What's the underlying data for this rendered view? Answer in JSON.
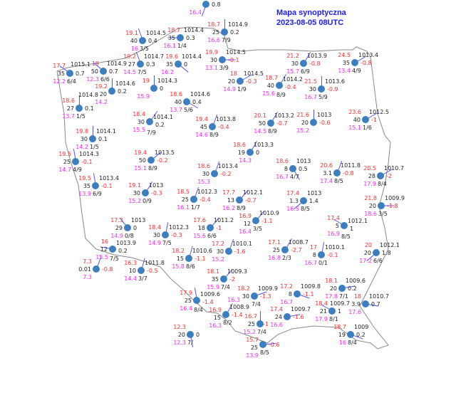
{
  "title": {
    "line1": "Mapa synoptyczna",
    "line2": "2023-08-05 08UTC"
  },
  "colors": {
    "title": "#1a1aff",
    "temperature": "#ff2a2a",
    "dew_point": "#ff22ff",
    "station": "#3d7ec0",
    "wind": "#5555ff",
    "border": "#888888"
  },
  "stations": [
    {
      "dew": "16.4",
      "tend": "0.8"
    },
    {
      "temp": "19.1",
      "pres": "1014.5",
      "vis": "40",
      "tend": "0.4",
      "dew": "16",
      "cl": "3/5"
    },
    {
      "temp": "18.7",
      "pres": "1014.4",
      "vis": "35",
      "tend": "0.3",
      "dew": "16.1",
      "cl": "1/4"
    },
    {
      "temp": "19.2",
      "pres": "1014.7",
      "vis": "27",
      "tend": "0.3",
      "dew": "14.5",
      "cl": "7/5"
    },
    {
      "temp": "19.6",
      "pres": "1014.4",
      "vis": "35",
      "tend": "0",
      "dew": "16.2"
    },
    {
      "temp": "19",
      "pres": "1014.9",
      "vis": "50",
      "tend": "0.7",
      "dew": "12.3",
      "cl": "6/6"
    },
    {
      "temp": "17.7",
      "pres": "1015.1",
      "vis": "35",
      "tend": "0.7",
      "dew": "12.2",
      "cl": "6/4"
    },
    {
      "temp": "19.2",
      "pres": "1014.6",
      "vis": "20",
      "tend": "0.2",
      "dew": "14.2"
    },
    {
      "temp": "19",
      "pres": "1014.3",
      "tend": "0",
      "dew": "15.9"
    },
    {
      "temp": "18.6",
      "pres": "1014.6",
      "vis": "40",
      "tend": "0.4",
      "dew": "13.7",
      "cl": "5/6"
    },
    {
      "temp": "18.6",
      "pres": "1014.8",
      "vis": "27",
      "tend": "0.1",
      "dew": "13.7",
      "cl": "1/5"
    },
    {
      "temp": "18.4",
      "pres": "1014.1",
      "vis": "30",
      "tend": "0.2",
      "dew": "15.5",
      "cl": "7/9"
    },
    {
      "temp": "19.4",
      "pres": "1013.8",
      "vis": "45",
      "tend": "-0.4",
      "dew": "14.6",
      "cl": "8/9"
    },
    {
      "temp": "19.8",
      "pres": "1014.1",
      "vis": "30",
      "tend": "0.1",
      "dew": "14.2",
      "cl": "1/5"
    },
    {
      "temp": "18.7",
      "pres": "1014.9",
      "vis": "25",
      "tend": "0.2",
      "dew": "16.6",
      "cl": "7/9"
    },
    {
      "temp": "19.9",
      "pres": "1014.5",
      "vis": "30",
      "tend": "-0.1",
      "dew": "13.1",
      "cl": "3/9"
    },
    {
      "temp": "21.2",
      "pres": "1013.9",
      "vis": "30",
      "tend": "-0.8",
      "dew": "15.7",
      "cl": "6/9"
    },
    {
      "temp": "24.5",
      "pres": "1013.4",
      "vis": "35",
      "tend": "-0.8",
      "dew": "13.4",
      "cl": "4/9"
    },
    {
      "temp": "18",
      "pres": "1014.5",
      "vis": "20",
      "tend": "-0.3",
      "dew": "14.9",
      "cl": "1/9"
    },
    {
      "temp": "18.7",
      "pres": "1014.2",
      "vis": "40",
      "tend": "-0.4",
      "dew": "15.6",
      "cl": "8/9"
    },
    {
      "temp": "21.5",
      "pres": "1013.6",
      "vis": "30",
      "tend": "-0.9",
      "dew": "16.7",
      "cl": "5/9"
    },
    {
      "temp": "20.1",
      "pres": "1013.2",
      "vis": "50",
      "tend": "-0.7",
      "dew": "14.5",
      "cl": "8/9"
    },
    {
      "temp": "21.6",
      "pres": "1013",
      "vis": "20",
      "tend": "-0.6",
      "dew": "15.2"
    },
    {
      "temp": "23.6",
      "pres": "1012.5",
      "vis": "40",
      "tend": "-1",
      "dew": "15.1",
      "cl": "1/6"
    },
    {
      "temp": "19.5",
      "pres": "1014.3",
      "vis": "25",
      "tend": "-0.1",
      "dew": "14.7",
      "cl": "4/9"
    },
    {
      "temp": "19.4",
      "pres": "1013.5",
      "vis": "50",
      "tend": "-0.2",
      "dew": "15.1",
      "cl": "8/9"
    },
    {
      "temp": "19.5",
      "pres": "1013.4",
      "vis": "35",
      "tend": "-0.1",
      "dew": "13.9",
      "cl": "6/9"
    },
    {
      "temp": "18.6",
      "pres": "1013.4",
      "vis": "30",
      "tend": "-0.2",
      "dew": "15.3"
    },
    {
      "temp": "19.1",
      "pres": "1013",
      "vis": "30",
      "tend": "-0.3",
      "dew": "15.2",
      "cl": "0/9"
    },
    {
      "temp": "18.5",
      "pres": "1012.3",
      "vis": "25",
      "tend": "-0.4",
      "dew": "16.1",
      "cl": "1/7"
    },
    {
      "temp": "17.3",
      "pres": "1013",
      "vis": "29",
      "tend": "0",
      "dew": "14.9",
      "cl": "0/8"
    },
    {
      "temp": "18.4",
      "pres": "1012.3",
      "vis": "30",
      "tend": "-0.3",
      "dew": "14.9",
      "cl": "7/5"
    },
    {
      "temp": "17.6",
      "pres": "1011.2",
      "vis": "18",
      "tend": "-1",
      "dew": "15.6",
      "cl": "6/6"
    },
    {
      "temp": "16",
      "pres": "1013.9",
      "vis": "12",
      "tend": "0.2",
      "dew": "15.5",
      "cl": "7/5"
    },
    {
      "temp": "7.3",
      "vis": "0.01",
      "tend": "-0.8",
      "dew": "7.3"
    },
    {
      "temp": "18.2",
      "pres": "1010.6",
      "vis": "15",
      "tend": "-1.1",
      "dew": "15.8",
      "cl": "8/6"
    },
    {
      "temp": "16.3",
      "pres": "1011.8",
      "vis": "10",
      "tend": "-0.5",
      "dew": "14.4",
      "cl": "3/7"
    },
    {
      "temp": "17.2",
      "pres": "1010.1",
      "vis": "30",
      "tend": "-1.6",
      "dew": "15.2"
    },
    {
      "temp": "18.6",
      "pres": "1013.3",
      "vis": "19",
      "tend": "0",
      "dew": "14.3"
    },
    {
      "temp": "18.6",
      "pres": "1013",
      "vis": "8",
      "tend": "0.5",
      "dew": "16.7",
      "cl": "4/7"
    },
    {
      "temp": "20.6",
      "pres": "1011.8",
      "vis": "3.1",
      "tend": "-0.8",
      "dew": "17.4",
      "cl": "8/5"
    },
    {
      "temp": "20.5",
      "pres": "1010.7",
      "vis": "28",
      "tend": "-2",
      "dew": "17.9",
      "cl": "8/4"
    },
    {
      "temp": "17.7",
      "pres": "1012.1",
      "vis": "13",
      "tend": "-0.7",
      "dew": "16.2",
      "cl": "8/9"
    },
    {
      "temp": "17.4",
      "pres": "1013",
      "vis": "1.3",
      "tend": "1.4",
      "dew": "16.5",
      "cl": "8/5"
    },
    {
      "temp": "21.8",
      "pres": "1009.9",
      "vis": "20",
      "tend": "-1.8",
      "dew": "18.6",
      "cl": "3/5"
    },
    {
      "temp": "16.9",
      "pres": "1010.9",
      "vis": "12",
      "tend": "-1.1",
      "dew": "16.4",
      "cl": "3/5"
    },
    {
      "temp": "17.4",
      "pres": "1012.1",
      "vis": "5",
      "tend": "1",
      "dew": "16.9",
      "cl": "8/5"
    },
    {
      "temp": "17.1",
      "pres": "1008.7",
      "vis": "25",
      "tend": "-2.7",
      "dew": "16.8",
      "cl": "2/3"
    },
    {
      "temp": "17",
      "pres": "1010.1",
      "vis": "8",
      "tend": "-0.1",
      "dew": "16.7",
      "cl": "0/1"
    },
    {
      "temp": "20",
      "pres": "1012.1",
      "vis": "20",
      "tend": "1.8",
      "dew": "17.2",
      "cl": "6/6"
    },
    {
      "temp": "18.1",
      "pres": "1009.3",
      "vis": "35",
      "tend": "-2",
      "dew": "15.9",
      "cl": "7/4"
    },
    {
      "temp": "17.9",
      "pres": "1009.6",
      "vis": "25",
      "tend": "-1.4",
      "dew": "16.4",
      "cl": "8/4"
    },
    {
      "temp": "16.9",
      "pres": "1008.9",
      "vis": "15",
      "tend": "-1.4",
      "dew": "16.3",
      "cl": "8/2"
    },
    {
      "temp": "12.3",
      "vis": "20",
      "tend": "0",
      "dew": "12.3",
      "cl": "7/"
    },
    {
      "temp": "18.2",
      "pres": "1009.9",
      "vis": "30",
      "tend": "-1.3",
      "dew": "16.3",
      "cl": "7/4"
    },
    {
      "temp": "17.2",
      "pres": "1009.8",
      "vis": "8",
      "tend": "-1.1",
      "dew": "16.7"
    },
    {
      "temp": "18.1",
      "pres": "1009.6",
      "vis": "20",
      "tend": "0.2",
      "dew": "17.8",
      "cl": "7/1"
    },
    {
      "temp": "18",
      "pres": "1010.7",
      "vis": "3.9",
      "tend": "0.7",
      "dew": "17.6"
    },
    {
      "temp": "18.4",
      "pres": "1009.7",
      "vis": "21",
      "tend": "1",
      "dew": "17.9",
      "cl": "8/1"
    },
    {
      "temp": "17.4",
      "pres": "1009.7",
      "vis": "24",
      "tend": "-1.6",
      "dew": "16.6"
    },
    {
      "temp": "16.7",
      "vis": "25",
      "tend": "-1",
      "dew": "15.2",
      "cl": "7/4"
    },
    {
      "temp": "15.7",
      "vis": "25",
      "tend": "-0.6",
      "dew": "13.9",
      "cl": "8/5"
    },
    {
      "temp": "18.7",
      "pres": "1009",
      "vis": "19",
      "tend": "0.2",
      "dew": "16",
      "cl": "8/4"
    }
  ]
}
